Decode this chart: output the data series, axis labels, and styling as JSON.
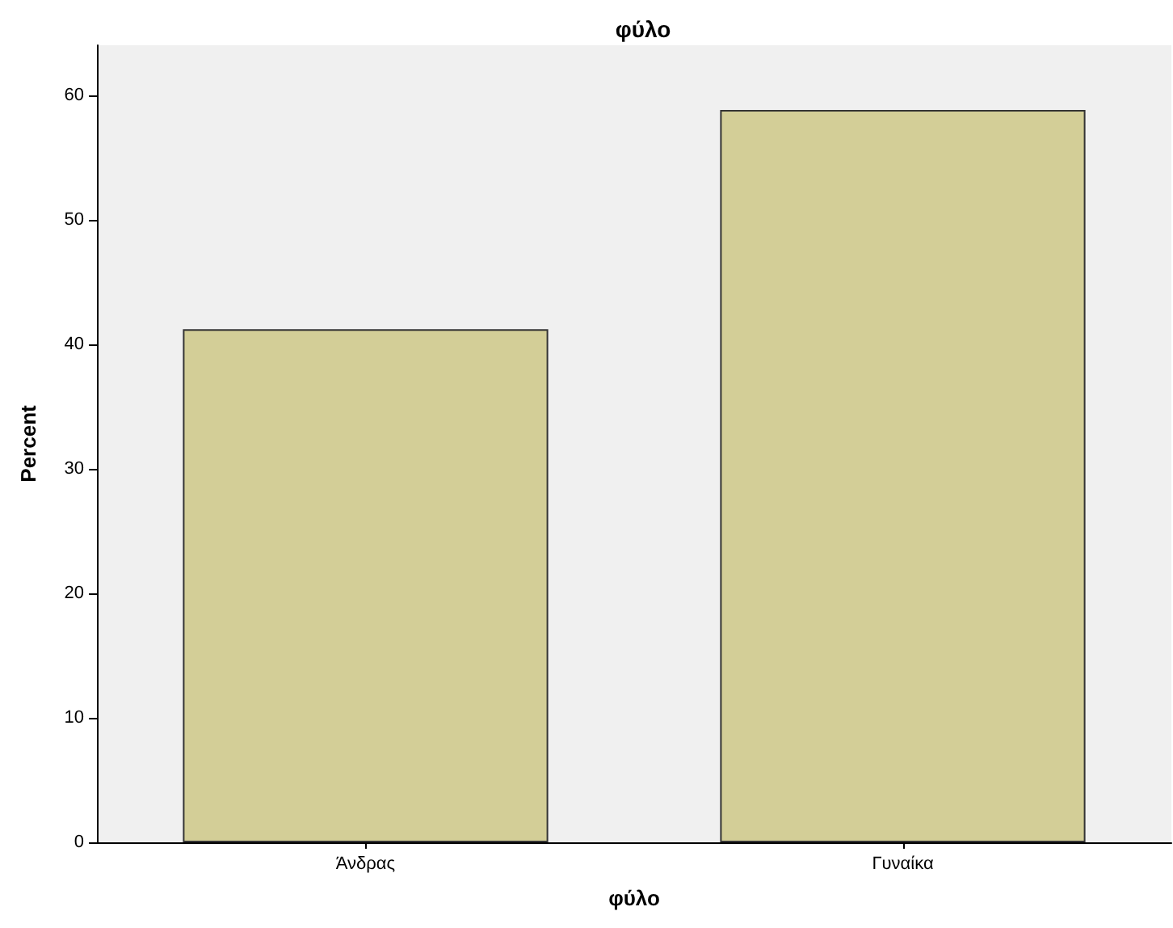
{
  "chart_data": {
    "type": "bar",
    "title": "φύλο",
    "xlabel": "φύλο",
    "ylabel": "Percent",
    "categories": [
      "Άνδρας",
      "Γυναίκα"
    ],
    "series": [
      {
        "color": "#d3ce97",
        "values": [
          41.2,
          58.8
        ]
      }
    ],
    "ylim": [
      0,
      64
    ],
    "yticks": [
      0,
      10,
      20,
      30,
      40,
      50,
      60
    ],
    "grid": false
  }
}
